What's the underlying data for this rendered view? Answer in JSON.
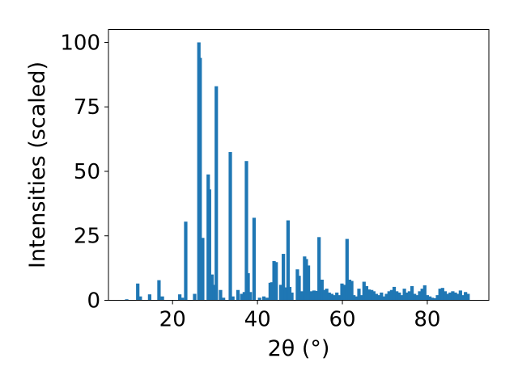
{
  "chart_data": {
    "type": "bar",
    "xlabel": "2θ (°)",
    "ylabel": "Intensities (scaled)",
    "xlim": [
      4.9,
      94.5
    ],
    "ylim": [
      0,
      105
    ],
    "xticks": [
      20,
      40,
      60,
      80
    ],
    "yticks": [
      0,
      25,
      50,
      75,
      100
    ],
    "bar_color": "#1f77b4",
    "grid": false,
    "bar_width": 0.8,
    "x": [
      9.2,
      11.8,
      12.4,
      14.6,
      16.8,
      17.6,
      21.7,
      22.3,
      23.1,
      25.2,
      26.2,
      26.5,
      27.1,
      28.4,
      28.7,
      29.3,
      29.8,
      30.3,
      31.3,
      32.0,
      33.6,
      34.2,
      35.4,
      36.3,
      36.9,
      37.4,
      37.8,
      38.3,
      39.2,
      40.5,
      41.5,
      42.3,
      43.0,
      43.4,
      43.9,
      44.4,
      45.5,
      46.1,
      46.6,
      47.2,
      47.6,
      48.1,
      49.4,
      49.8,
      50.4,
      51.1,
      51.5,
      52.0,
      52.7,
      53.3,
      53.9,
      54.5,
      55.2,
      55.7,
      56.3,
      56.9,
      57.5,
      58.1,
      58.7,
      59.3,
      59.9,
      60.5,
      61.1,
      61.7,
      62.2,
      62.7,
      63.3,
      63.9,
      64.5,
      65.1,
      65.7,
      66.3,
      66.9,
      67.4,
      68.0,
      68.6,
      69.2,
      69.8,
      70.4,
      71.0,
      71.6,
      72.2,
      72.8,
      73.4,
      74.0,
      74.6,
      75.2,
      75.8,
      76.4,
      77.0,
      77.6,
      78.2,
      78.8,
      79.4,
      80.0,
      80.6,
      81.2,
      81.8,
      82.4,
      83.0,
      83.6,
      84.2,
      84.8,
      85.4,
      86.0,
      86.6,
      87.2,
      87.8,
      88.4,
      89.0,
      89.6
    ],
    "values": [
      0.4,
      6.5,
      1.5,
      2.3,
      7.8,
      1.5,
      2.3,
      1.0,
      30.5,
      2.5,
      100.0,
      94.0,
      24.2,
      48.8,
      43.0,
      10.0,
      6.0,
      83.0,
      4.0,
      1.0,
      57.5,
      1.5,
      4.0,
      2.5,
      3.2,
      54.0,
      10.5,
      3.2,
      32.0,
      1.0,
      1.5,
      1.0,
      6.8,
      7.0,
      15.2,
      14.8,
      6.0,
      18.0,
      5.0,
      31.0,
      5.2,
      3.0,
      12.0,
      9.5,
      3.5,
      17.0,
      16.0,
      13.5,
      3.5,
      3.8,
      3.6,
      24.5,
      8.0,
      4.0,
      4.5,
      3.0,
      2.5,
      2.0,
      3.0,
      2.0,
      6.5,
      6.0,
      23.8,
      8.0,
      7.5,
      2.0,
      1.5,
      4.5,
      2.0,
      7.2,
      5.5,
      4.2,
      4.0,
      3.5,
      2.5,
      2.0,
      3.0,
      1.5,
      2.5,
      3.5,
      4.0,
      5.2,
      3.5,
      3.0,
      2.0,
      4.5,
      3.0,
      3.5,
      5.5,
      2.5,
      2.0,
      3.5,
      4.5,
      5.8,
      2.0,
      1.5,
      1.0,
      0.8,
      2.0,
      4.5,
      4.8,
      3.5,
      2.5,
      3.0,
      3.5,
      3.0,
      2.5,
      3.8,
      2.0,
      3.2,
      2.5
    ]
  }
}
